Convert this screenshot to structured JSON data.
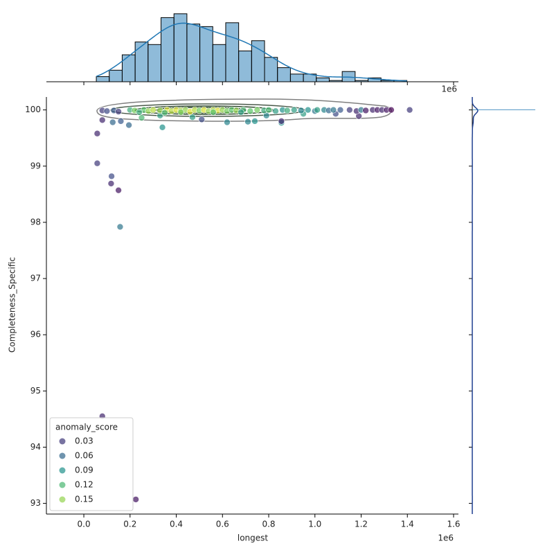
{
  "chart_data": {
    "type": "scatter",
    "x_label": "longest",
    "y_label": "Completeness_Specific",
    "x_offset_label": "1e6",
    "xlim": [
      -162000,
      1621000
    ],
    "ylim": [
      92.81,
      100.23
    ],
    "xticks": [
      {
        "value": 0,
        "label": "0.0"
      },
      {
        "value": 200000,
        "label": "0.2"
      },
      {
        "value": 400000,
        "label": "0.4"
      },
      {
        "value": 600000,
        "label": "0.6"
      },
      {
        "value": 800000,
        "label": "0.8"
      },
      {
        "value": 1000000,
        "label": "1.0"
      },
      {
        "value": 1200000,
        "label": "1.2"
      },
      {
        "value": 1400000,
        "label": "1.4"
      },
      {
        "value": 1600000,
        "label": "1.6"
      }
    ],
    "yticks": [
      93,
      94,
      95,
      96,
      97,
      98,
      99,
      100
    ],
    "hue_norm": [
      0,
      0.18
    ],
    "palette": [
      "#440154",
      "#3b528b",
      "#21918c",
      "#5ec962",
      "#fde725"
    ],
    "legend": {
      "title": "anomaly_score",
      "entries": [
        0.03,
        0.06,
        0.09,
        0.12,
        0.15
      ],
      "loc": "lower left"
    },
    "series": [
      {
        "x": [
          58000,
          58000,
          120000,
          118000,
          150000,
          157000,
          80000,
          225000,
          80000,
          160000,
          125000,
          195000,
          340000,
          855000,
          855000,
          620000,
          710000,
          740000,
          1190000,
          1090000,
          510000,
          250000,
          330000,
          470000,
          790000,
          950000,
          80000,
          100000,
          130000,
          150000,
          200000,
          220000,
          260000,
          280000,
          300000,
          330000,
          360000,
          380000,
          400000,
          420000,
          440000,
          460000,
          480000,
          500000,
          520000,
          540000,
          560000,
          580000,
          600000,
          620000,
          640000,
          660000,
          690000,
          720000,
          750000,
          780000,
          800000,
          830000,
          860000,
          880000,
          910000,
          940000,
          970000,
          1000000,
          1010000,
          1040000,
          1060000,
          1080000,
          1110000,
          1150000,
          1180000,
          1200000,
          1220000,
          1250000,
          1270000,
          1290000,
          1310000,
          1330000,
          1410000,
          350000,
          420000,
          560000,
          240000,
          680000
        ],
        "y": [
          99.58,
          99.05,
          98.82,
          98.69,
          98.57,
          97.92,
          94.55,
          93.07,
          99.82,
          99.8,
          99.78,
          99.73,
          99.69,
          99.77,
          99.8,
          99.78,
          99.79,
          99.8,
          99.89,
          99.93,
          99.83,
          99.86,
          99.9,
          99.87,
          99.9,
          99.93,
          99.99,
          99.98,
          99.99,
          99.97,
          100,
          99.99,
          100,
          99.98,
          100,
          99.99,
          100,
          99.98,
          100,
          99.99,
          100,
          99.97,
          100,
          99.99,
          100,
          99.98,
          100,
          99.99,
          100,
          99.98,
          100,
          99.99,
          100,
          99.98,
          100,
          99.99,
          100,
          99.98,
          100,
          99.99,
          100,
          99.99,
          100,
          99.98,
          100,
          100,
          99.99,
          100,
          100,
          100,
          99.98,
          100,
          99.99,
          100,
          100,
          100,
          100,
          100,
          100,
          99.95,
          99.96,
          99.96,
          99.96,
          99.96
        ],
        "hue": [
          0.02,
          0.03,
          0.04,
          0.02,
          0.01,
          0.07,
          0.02,
          0.01,
          0.02,
          0.05,
          0.06,
          0.06,
          0.09,
          0.09,
          0.02,
          0.08,
          0.08,
          0.09,
          0.02,
          0.04,
          0.04,
          0.12,
          0.1,
          0.1,
          0.08,
          0.1,
          0.03,
          0.04,
          0.05,
          0.03,
          0.11,
          0.14,
          0.13,
          0.15,
          0.16,
          0.15,
          0.17,
          0.16,
          0.17,
          0.16,
          0.15,
          0.17,
          0.16,
          0.14,
          0.17,
          0.15,
          0.16,
          0.17,
          0.15,
          0.14,
          0.13,
          0.15,
          0.12,
          0.13,
          0.14,
          0.11,
          0.12,
          0.1,
          0.09,
          0.11,
          0.1,
          0.08,
          0.09,
          0.07,
          0.1,
          0.08,
          0.06,
          0.07,
          0.05,
          0.03,
          0.02,
          0.07,
          0.01,
          0.02,
          0.01,
          0.02,
          0.01,
          0.0,
          0.03,
          0.12,
          0.14,
          0.13,
          0.11,
          0.1
        ]
      }
    ],
    "histogram": {
      "bins": [
        54000,
        110000,
        166000,
        222000,
        278000,
        334000,
        390000,
        446000,
        502000,
        558000,
        614000,
        670000,
        726000,
        782000,
        838000,
        894000,
        950000,
        1006000,
        1062000,
        1118000,
        1174000,
        1230000,
        1286000,
        1342000,
        1398000
      ],
      "counts": [
        4,
        9,
        21,
        31,
        29,
        50,
        53,
        45,
        43,
        29,
        46,
        24,
        32,
        19,
        11,
        6,
        6,
        3,
        1,
        8,
        1,
        3,
        1,
        1
      ],
      "ylim": [
        0,
        54
      ],
      "color": "#1f77b4"
    }
  }
}
